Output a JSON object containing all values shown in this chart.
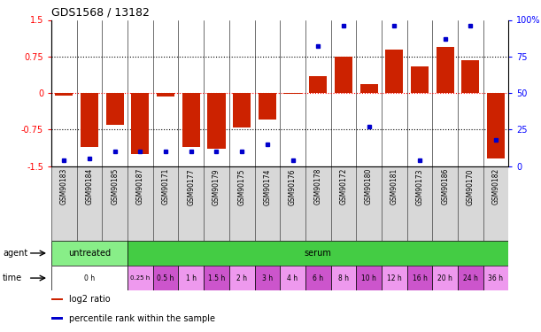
{
  "title": "GDS1568 / 13182",
  "samples": [
    "GSM90183",
    "GSM90184",
    "GSM90185",
    "GSM90187",
    "GSM90171",
    "GSM90177",
    "GSM90179",
    "GSM90175",
    "GSM90174",
    "GSM90176",
    "GSM90178",
    "GSM90172",
    "GSM90180",
    "GSM90181",
    "GSM90173",
    "GSM90186",
    "GSM90170",
    "GSM90182"
  ],
  "log2_ratio": [
    -0.05,
    -1.1,
    -0.65,
    -1.25,
    -0.08,
    -1.1,
    -1.15,
    -0.7,
    -0.55,
    -0.02,
    0.35,
    0.75,
    0.18,
    0.9,
    0.55,
    0.95,
    0.68,
    -1.35
  ],
  "percentile_rank": [
    4,
    5,
    10,
    10,
    10,
    10,
    10,
    10,
    15,
    4,
    82,
    96,
    27,
    96,
    4,
    87,
    96,
    18
  ],
  "ylim_left": [
    -1.5,
    1.5
  ],
  "ylim_right": [
    0,
    100
  ],
  "yticks_left": [
    -1.5,
    -0.75,
    0,
    0.75,
    1.5
  ],
  "yticks_right": [
    0,
    25,
    50,
    75,
    100
  ],
  "dotted_lines": [
    -0.75,
    0.75
  ],
  "bar_color": "#cc2200",
  "dot_color": "#0000cc",
  "agent_untreated_color": "#88ee88",
  "agent_serum_color": "#44cc44",
  "time_0h_color": "#ffffff",
  "time_colors_cycle": [
    "#ee99ee",
    "#cc55cc"
  ],
  "sample_box_color": "#d8d8d8",
  "time_sample_map": {
    "GSM90183": "0 h",
    "GSM90184": "0 h",
    "GSM90185": "0 h",
    "GSM90187": "0.25 h",
    "GSM90171": "0.5 h",
    "GSM90177": "1 h",
    "GSM90179": "1.5 h",
    "GSM90175": "2 h",
    "GSM90174": "3 h",
    "GSM90176": "4 h",
    "GSM90178": "6 h",
    "GSM90172": "8 h",
    "GSM90180": "10 h",
    "GSM90181": "12 h",
    "GSM90173": "16 h",
    "GSM90186": "20 h",
    "GSM90170": "24 h",
    "GSM90182": "36 h"
  },
  "legend_items": [
    {
      "label": "log2 ratio",
      "color": "#cc2200"
    },
    {
      "label": "percentile rank within the sample",
      "color": "#0000cc"
    }
  ],
  "untreated_count": 3
}
